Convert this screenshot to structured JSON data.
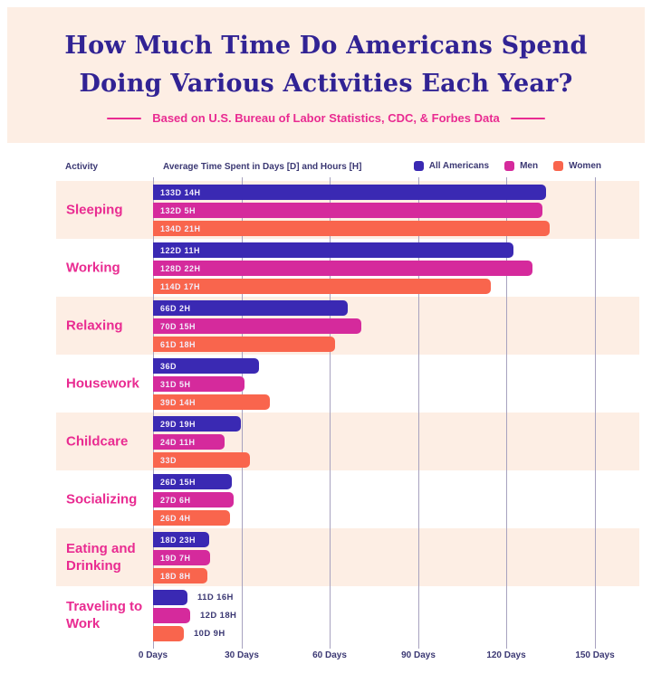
{
  "header": {
    "title_line1": "How Much Time Do Americans Spend",
    "title_line2": "Doing Various Activities Each Year?",
    "subtitle": "Based on U.S. Bureau of Labor Statistics, CDC, & Forbes Data"
  },
  "table_header": {
    "activity": "Activity",
    "axis_title": "Average Time Spent in Days [D] and Hours [H]"
  },
  "legend": [
    {
      "name": "All Americans",
      "color": "#3a29b3"
    },
    {
      "name": "Men",
      "color": "#d52a9c"
    },
    {
      "name": "Women",
      "color": "#f9654d"
    }
  ],
  "chart_data": {
    "type": "bar",
    "orientation": "horizontal",
    "title": "How Much Time Do Americans Spend Doing Various Activities Each Year?",
    "subtitle": "Based on U.S. Bureau of Labor Statistics, CDC, & Forbes Data",
    "xlabel": "Days",
    "xlim": [
      0,
      150
    ],
    "x_tick_values": [
      0,
      30,
      60,
      90,
      120,
      150
    ],
    "x_tick_labels": [
      "0 Days",
      "30 Days",
      "60 Days",
      "90 Days",
      "120 Days",
      "150 Days"
    ],
    "grid": true,
    "legend_position": "top-right",
    "series_names": [
      "All Americans",
      "Men",
      "Women"
    ],
    "categories": [
      "Sleeping",
      "Working",
      "Relaxing",
      "Housework",
      "Childcare",
      "Socializing",
      "Eating and Drinking",
      "Traveling to Work"
    ],
    "rows": [
      {
        "activity": "Sleeping",
        "values": [
          {
            "series": "All Americans",
            "label": "133D 14H",
            "days": 133.58
          },
          {
            "series": "Men",
            "label": "132D 5H",
            "days": 132.21
          },
          {
            "series": "Women",
            "label": "134D 21H",
            "days": 134.88
          }
        ]
      },
      {
        "activity": "Working",
        "values": [
          {
            "series": "All Americans",
            "label": "122D 11H",
            "days": 122.46
          },
          {
            "series": "Men",
            "label": "128D 22H",
            "days": 128.92
          },
          {
            "series": "Women",
            "label": "114D 17H",
            "days": 114.71
          }
        ]
      },
      {
        "activity": "Relaxing",
        "values": [
          {
            "series": "All Americans",
            "label": "66D 2H",
            "days": 66.08
          },
          {
            "series": "Men",
            "label": "70D 15H",
            "days": 70.63
          },
          {
            "series": "Women",
            "label": "61D 18H",
            "days": 61.75
          }
        ]
      },
      {
        "activity": "Housework",
        "values": [
          {
            "series": "All Americans",
            "label": "36D",
            "days": 36.0
          },
          {
            "series": "Men",
            "label": "31D 5H",
            "days": 31.21
          },
          {
            "series": "Women",
            "label": "39D 14H",
            "days": 39.58
          }
        ]
      },
      {
        "activity": "Childcare",
        "values": [
          {
            "series": "All Americans",
            "label": "29D 19H",
            "days": 29.79
          },
          {
            "series": "Men",
            "label": "24D 11H",
            "days": 24.46
          },
          {
            "series": "Women",
            "label": "33D",
            "days": 33.0
          }
        ]
      },
      {
        "activity": "Socializing",
        "values": [
          {
            "series": "All Americans",
            "label": "26D 15H",
            "days": 26.63
          },
          {
            "series": "Men",
            "label": "27D 6H",
            "days": 27.25
          },
          {
            "series": "Women",
            "label": "26D 4H",
            "days": 26.17
          }
        ]
      },
      {
        "activity": "Eating and Drinking",
        "values": [
          {
            "series": "All Americans",
            "label": "18D 23H",
            "days": 18.96
          },
          {
            "series": "Men",
            "label": "19D 7H",
            "days": 19.29
          },
          {
            "series": "Women",
            "label": "18D 8H",
            "days": 18.33
          }
        ]
      },
      {
        "activity": "Traveling to Work",
        "values": [
          {
            "series": "All Americans",
            "label": "11D 16H",
            "days": 11.67
          },
          {
            "series": "Men",
            "label": "12D 18H",
            "days": 12.75
          },
          {
            "series": "Women",
            "label": "10D 9H",
            "days": 10.38
          }
        ]
      }
    ]
  },
  "colors": {
    "band_background": "#fdeee4",
    "title_text": "#312394",
    "pink_text": "#e92b91",
    "axis_text": "#3b3873",
    "gridline": "#a7a2bf",
    "bar_all_americans": "#3a29b3",
    "bar_men": "#d52a9c",
    "bar_women": "#f9654d"
  }
}
